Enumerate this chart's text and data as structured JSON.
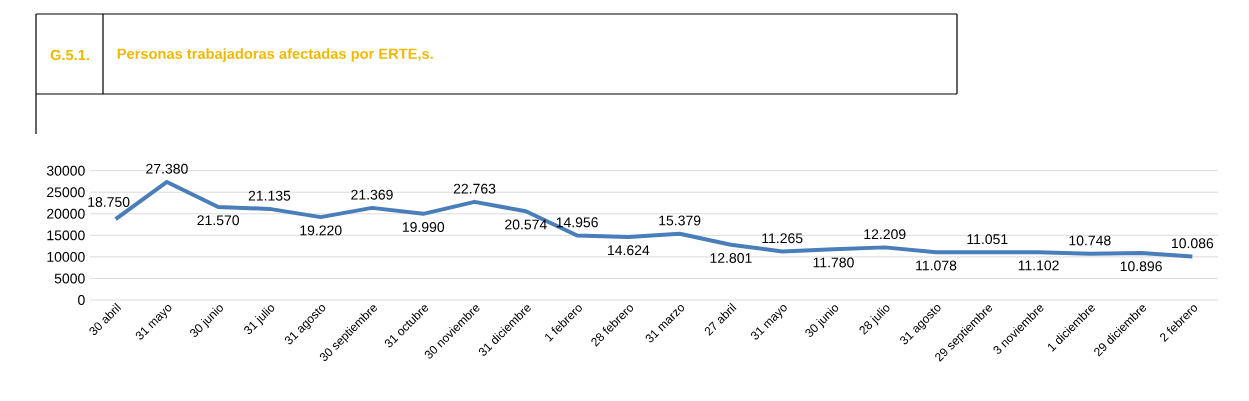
{
  "chart_data": {
    "type": "line",
    "title": "Personas trabajadoras afectadas por ERTE,s.",
    "annotations": [
      "G.5.1."
    ],
    "categories": [
      "30 abril",
      "31 mayo",
      "30 junio",
      "31 julio",
      "31 agosto",
      "30 septiembre",
      "31 octubre",
      "30 noviembre",
      "31 diciembre",
      "1 febrero",
      "28 febrero",
      "31 marzo",
      "27 abril",
      "31 mayo",
      "30 junio",
      "28 julio",
      "31 agosto",
      "29 septiembre",
      "3 noviembre",
      "1 diciembre",
      "29 diciembre",
      "2 febrero"
    ],
    "series": [
      {
        "color": "#4a7ebb",
        "values": [
          18750,
          27380,
          21570,
          21135,
          19220,
          21369,
          19990,
          22763,
          20574,
          14956,
          14624,
          15379,
          12801,
          11265,
          11780,
          12209,
          11078,
          11051,
          11102,
          10748,
          10896,
          10086
        ],
        "value_labels": [
          "18.750",
          "27.380",
          "21.570",
          "21.135",
          "19.220",
          "21.369",
          "19.990",
          "22.763",
          "20.574",
          "14.956",
          "14.624",
          "15.379",
          "12.801",
          "11.265",
          "11.780",
          "12.209",
          "11.078",
          "11.051",
          "11.102",
          "10.748",
          "10.896",
          "10.086"
        ]
      }
    ],
    "ylim": [
      0,
      30000
    ],
    "yticks": [
      0,
      5000,
      10000,
      15000,
      20000,
      25000,
      30000
    ],
    "grid": "y",
    "marker": "none",
    "line_style": "solid"
  }
}
